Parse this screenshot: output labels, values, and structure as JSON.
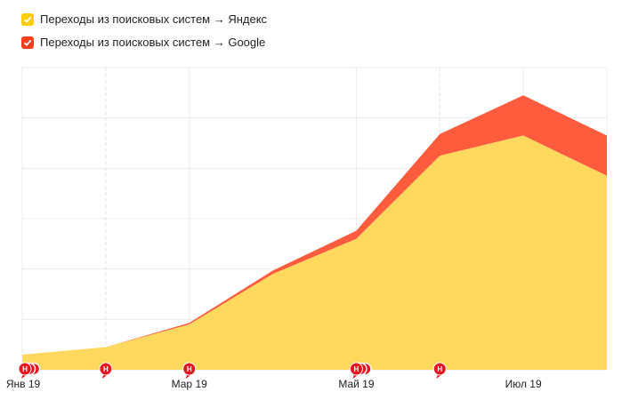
{
  "legend": {
    "items": [
      {
        "label": "Переходы из поисковых систем → Яндекс",
        "color": "#ffcc00",
        "checked": true
      },
      {
        "label": "Переходы из поисковых систем → Google",
        "color": "#fc3f1d",
        "checked": true
      }
    ]
  },
  "chart_data": {
    "type": "area",
    "stacked": true,
    "x": [
      "2019-01",
      "2019-02",
      "2019-03",
      "2019-04",
      "2019-05",
      "2019-06",
      "2019-07",
      "2019-08"
    ],
    "x_tick_labels": [
      "Янв 19",
      "Мар 19",
      "Май 19",
      "Июл 19"
    ],
    "x_tick_positions": [
      "2019-01",
      "2019-03",
      "2019-05",
      "2019-07"
    ],
    "series": [
      {
        "name": "Переходы из поисковых систем → Яндекс",
        "color": "#ffd85e",
        "values": [
          0.3,
          0.45,
          0.9,
          1.9,
          2.6,
          4.25,
          4.65,
          3.85
        ]
      },
      {
        "name": "Переходы из поисковых систем → Google",
        "color": "#ff5c3e",
        "values": [
          0.0,
          0.0,
          0.03,
          0.07,
          0.16,
          0.43,
          0.8,
          0.8
        ]
      }
    ],
    "ylim": [
      0,
      6
    ],
    "grid": true,
    "legend_position": "top-left",
    "annotations": [
      {
        "x": "2019-01",
        "label": "Н",
        "count": 3
      },
      {
        "x": "2019-02",
        "label": "Н",
        "count": 1
      },
      {
        "x": "2019-03",
        "label": "Н",
        "count": 1
      },
      {
        "x": "2019-05",
        "label": "Н",
        "count": 3
      },
      {
        "x": "2019-06",
        "label": "Н",
        "count": 1
      }
    ]
  }
}
